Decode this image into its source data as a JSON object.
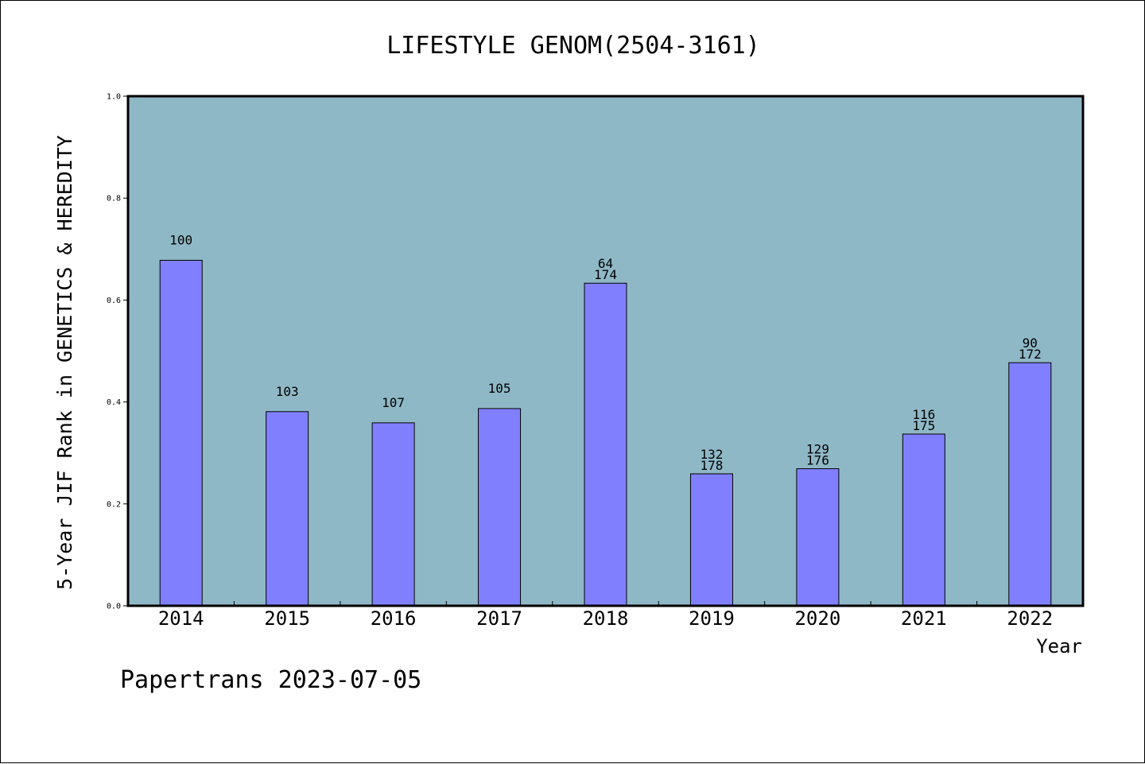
{
  "chart_data": {
    "type": "bar",
    "title": "LIFESTYLE GENOM(2504-3161)",
    "xlabel": "Year",
    "ylabel": "5-Year JIF Rank in GENETICS & HEREDITY",
    "ylim": [
      0,
      1.0
    ],
    "yticks": [
      "0.0",
      "0.2",
      "0.4",
      "0.6",
      "0.8",
      "1.0"
    ],
    "categories": [
      "2014",
      "2015",
      "2016",
      "2017",
      "2018",
      "2019",
      "2020",
      "2021",
      "2022"
    ],
    "values": [
      0.678,
      0.381,
      0.359,
      0.387,
      0.633,
      0.259,
      0.269,
      0.337,
      0.477
    ],
    "labels": [
      [
        "100"
      ],
      [
        "103"
      ],
      [
        "107"
      ],
      [
        "105"
      ],
      [
        "64",
        "174"
      ],
      [
        "132",
        "178"
      ],
      [
        "129",
        "176"
      ],
      [
        "116",
        "175"
      ],
      [
        "90",
        "172"
      ]
    ],
    "bar_color": "#8080ff",
    "plot_background": "#8fb8c6",
    "grid": false
  },
  "footer": "Papertrans 2023-07-05"
}
